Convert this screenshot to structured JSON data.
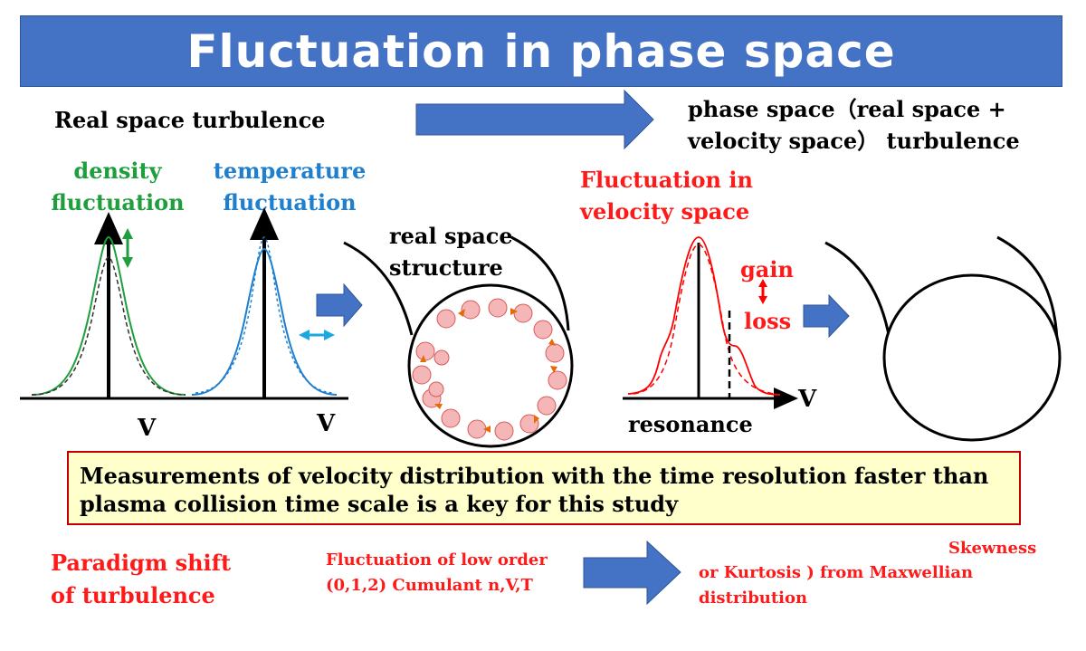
{
  "title": "Fluctuation in phase space",
  "top_row": {
    "left_label": "Real space turbulence",
    "right_label_line1": "phase space（real space +",
    "right_label_line2": "velocity space） turbulence"
  },
  "panels": {
    "density": {
      "line1": "density",
      "line2": "fluctuation",
      "axis": "V"
    },
    "temperature": {
      "line1": "temperature",
      "line2": "fluctuation",
      "axis": "V"
    },
    "real_space": {
      "line1": "real space",
      "line2": "structure"
    },
    "velocity": {
      "line1": "Fluctuation in",
      "line2": "velocity space",
      "gain": "gain",
      "loss": "loss",
      "axis": "V",
      "resonance": "resonance"
    },
    "unknown": {
      "symbol": "?"
    }
  },
  "key_statement": "Measurements of velocity distribution with the time resolution faster than plasma collision time scale is a key for this study",
  "bottom_row": {
    "paradigm_line1": "Paradigm shift",
    "paradigm_line2": "of turbulence",
    "low_order_line1": "Fluctuation of low order",
    "low_order_line2": "(0,1,2) Cumulant n,V,T",
    "skewness": "Skewness",
    "kurtosis_line1": "or Kurtosis ) from Maxwellian",
    "kurtosis_line2": "distribution"
  },
  "colors": {
    "title_bar": "#4472c4",
    "arrow": "#4472c4",
    "density": "#1e9e3c",
    "temperature": "#1f7fcf",
    "velocity": "#ff1a1a",
    "key_box_fill": "#ffffcc",
    "key_box_border": "#c00000"
  }
}
